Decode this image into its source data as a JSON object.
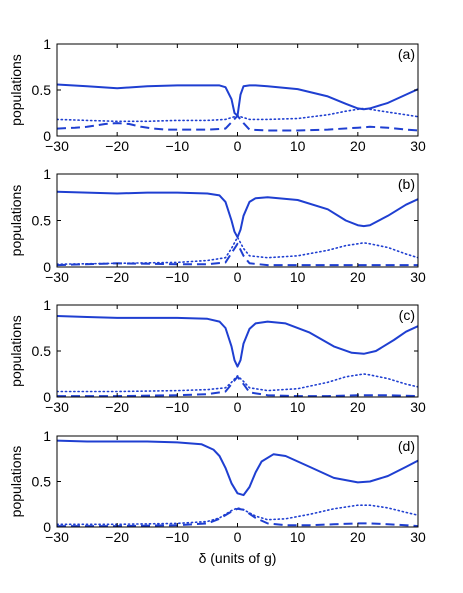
{
  "chart_data": [
    {
      "type": "line",
      "panel_label": "(a)",
      "xlim": [
        -30,
        30
      ],
      "ylim": [
        0,
        1
      ],
      "xticks": [
        -30,
        -20,
        -10,
        0,
        10,
        20,
        30
      ],
      "yticks": [
        0,
        0.5,
        1
      ],
      "xlabel": "",
      "ylabel": "populations",
      "series": [
        {
          "style": "solid",
          "color": "#1f3fd1",
          "x": [
            -30,
            -25,
            -20,
            -15,
            -10,
            -5,
            -3,
            -2,
            -1,
            -0.5,
            0,
            0.5,
            1,
            2,
            3,
            5,
            10,
            15,
            18,
            20,
            21,
            22,
            25,
            28,
            30
          ],
          "y": [
            0.56,
            0.54,
            0.52,
            0.54,
            0.55,
            0.55,
            0.55,
            0.53,
            0.4,
            0.25,
            0.22,
            0.45,
            0.54,
            0.55,
            0.55,
            0.54,
            0.51,
            0.43,
            0.35,
            0.3,
            0.29,
            0.3,
            0.36,
            0.45,
            0.51
          ]
        },
        {
          "style": "dotted",
          "color": "#1f3fd1",
          "x": [
            -30,
            -25,
            -20,
            -15,
            -10,
            -5,
            -2,
            -1,
            0,
            1,
            2,
            5,
            10,
            15,
            18,
            20,
            21,
            22,
            25,
            28,
            30
          ],
          "y": [
            0.18,
            0.17,
            0.16,
            0.16,
            0.17,
            0.17,
            0.18,
            0.2,
            0.22,
            0.2,
            0.18,
            0.18,
            0.19,
            0.23,
            0.27,
            0.29,
            0.3,
            0.29,
            0.26,
            0.23,
            0.21
          ]
        },
        {
          "style": "dashed",
          "color": "#1f3fd1",
          "x": [
            -30,
            -27,
            -25,
            -22,
            -20,
            -18,
            -16,
            -14,
            -12,
            -10,
            -5,
            -2,
            -1,
            0,
            1,
            2,
            5,
            10,
            15,
            20,
            22,
            25,
            28,
            30
          ],
          "y": [
            0.08,
            0.09,
            0.1,
            0.13,
            0.14,
            0.13,
            0.1,
            0.08,
            0.07,
            0.07,
            0.07,
            0.08,
            0.15,
            0.22,
            0.14,
            0.07,
            0.06,
            0.06,
            0.07,
            0.09,
            0.1,
            0.09,
            0.07,
            0.06
          ]
        }
      ]
    },
    {
      "type": "line",
      "panel_label": "(b)",
      "xlim": [
        -30,
        30
      ],
      "ylim": [
        0,
        1
      ],
      "xticks": [
        -30,
        -20,
        -10,
        0,
        10,
        20,
        30
      ],
      "yticks": [
        0,
        0.5,
        1
      ],
      "xlabel": "",
      "ylabel": "populations",
      "series": [
        {
          "style": "solid",
          "color": "#1f3fd1",
          "x": [
            -30,
            -25,
            -20,
            -15,
            -10,
            -5,
            -3,
            -2,
            -1,
            -0.5,
            0,
            0.5,
            1,
            2,
            3,
            5,
            10,
            15,
            18,
            20,
            21,
            22,
            25,
            28,
            30
          ],
          "y": [
            0.81,
            0.8,
            0.79,
            0.8,
            0.8,
            0.79,
            0.77,
            0.7,
            0.5,
            0.38,
            0.32,
            0.4,
            0.55,
            0.7,
            0.74,
            0.75,
            0.72,
            0.62,
            0.5,
            0.45,
            0.44,
            0.45,
            0.55,
            0.67,
            0.73
          ]
        },
        {
          "style": "dotted",
          "color": "#1f3fd1",
          "x": [
            -30,
            -20,
            -10,
            -5,
            -2,
            -1,
            0,
            1,
            2,
            5,
            10,
            15,
            18,
            20,
            21,
            22,
            25,
            28,
            30
          ],
          "y": [
            0.03,
            0.04,
            0.05,
            0.07,
            0.1,
            0.2,
            0.32,
            0.2,
            0.12,
            0.1,
            0.12,
            0.18,
            0.23,
            0.25,
            0.26,
            0.25,
            0.21,
            0.14,
            0.1
          ]
        },
        {
          "style": "dashed",
          "color": "#1f3fd1",
          "x": [
            -30,
            -20,
            -10,
            -5,
            -2,
            -1,
            0,
            1,
            2,
            5,
            10,
            15,
            20,
            25,
            30
          ],
          "y": [
            0.02,
            0.04,
            0.03,
            0.03,
            0.05,
            0.15,
            0.25,
            0.12,
            0.04,
            0.02,
            0.02,
            0.02,
            0.02,
            0.02,
            0.02
          ]
        }
      ]
    },
    {
      "type": "line",
      "panel_label": "(c)",
      "xlim": [
        -30,
        30
      ],
      "ylim": [
        0,
        1
      ],
      "xticks": [
        -30,
        -20,
        -10,
        0,
        10,
        20,
        30
      ],
      "yticks": [
        0,
        0.5,
        1
      ],
      "xlabel": "",
      "ylabel": "populations",
      "series": [
        {
          "style": "solid",
          "color": "#1f3fd1",
          "x": [
            -30,
            -25,
            -20,
            -15,
            -10,
            -5,
            -3,
            -2,
            -1,
            -0.5,
            0,
            0.5,
            1,
            2,
            3,
            5,
            8,
            12,
            16,
            19,
            21,
            23,
            26,
            28,
            30
          ],
          "y": [
            0.88,
            0.87,
            0.86,
            0.86,
            0.86,
            0.85,
            0.82,
            0.75,
            0.55,
            0.4,
            0.33,
            0.4,
            0.58,
            0.74,
            0.8,
            0.82,
            0.8,
            0.7,
            0.55,
            0.48,
            0.47,
            0.5,
            0.62,
            0.71,
            0.77
          ]
        },
        {
          "style": "dotted",
          "color": "#1f3fd1",
          "x": [
            -30,
            -20,
            -10,
            -5,
            -2,
            -1,
            0,
            1,
            2,
            5,
            10,
            15,
            18,
            20,
            21,
            22,
            25,
            28,
            30
          ],
          "y": [
            0.06,
            0.06,
            0.07,
            0.08,
            0.1,
            0.16,
            0.23,
            0.17,
            0.1,
            0.07,
            0.09,
            0.16,
            0.22,
            0.24,
            0.25,
            0.24,
            0.2,
            0.14,
            0.11
          ]
        },
        {
          "style": "dashed",
          "color": "#1f3fd1",
          "x": [
            -30,
            -20,
            -10,
            -5,
            -2,
            -1,
            0,
            1,
            2,
            5,
            10,
            15,
            20,
            25,
            30
          ],
          "y": [
            0.01,
            0.01,
            0.02,
            0.03,
            0.06,
            0.14,
            0.22,
            0.14,
            0.05,
            0.02,
            0.01,
            0.01,
            0.02,
            0.02,
            0.01
          ]
        }
      ]
    },
    {
      "type": "line",
      "panel_label": "(d)",
      "xlim": [
        -30,
        30
      ],
      "ylim": [
        0,
        1
      ],
      "xticks": [
        -30,
        -20,
        -10,
        0,
        10,
        20,
        30
      ],
      "yticks": [
        0,
        0.5,
        1
      ],
      "xlabel": "δ (units of g)",
      "ylabel": "populations",
      "series": [
        {
          "style": "solid",
          "color": "#1f3fd1",
          "x": [
            -30,
            -25,
            -20,
            -15,
            -10,
            -6,
            -4,
            -3,
            -2,
            -1,
            0,
            1,
            2,
            3,
            4,
            6,
            8,
            12,
            16,
            20,
            22,
            25,
            28,
            30
          ],
          "y": [
            0.95,
            0.94,
            0.94,
            0.94,
            0.93,
            0.91,
            0.85,
            0.78,
            0.65,
            0.48,
            0.37,
            0.35,
            0.44,
            0.6,
            0.72,
            0.8,
            0.78,
            0.66,
            0.54,
            0.49,
            0.5,
            0.56,
            0.66,
            0.73
          ]
        },
        {
          "style": "dotted",
          "color": "#1f3fd1",
          "x": [
            -30,
            -20,
            -10,
            -5,
            -3,
            -1,
            0,
            1,
            3,
            5,
            8,
            12,
            16,
            20,
            22,
            25,
            28,
            30
          ],
          "y": [
            0.03,
            0.03,
            0.04,
            0.06,
            0.1,
            0.18,
            0.21,
            0.19,
            0.12,
            0.08,
            0.09,
            0.14,
            0.2,
            0.24,
            0.24,
            0.21,
            0.16,
            0.13
          ]
        },
        {
          "style": "dashed",
          "color": "#1f3fd1",
          "x": [
            -30,
            -20,
            -10,
            -5,
            -3,
            -1,
            0,
            1,
            3,
            5,
            8,
            12,
            16,
            20,
            22,
            25,
            28,
            30
          ],
          "y": [
            0.01,
            0.01,
            0.02,
            0.04,
            0.09,
            0.17,
            0.2,
            0.19,
            0.1,
            0.04,
            0.02,
            0.02,
            0.03,
            0.04,
            0.04,
            0.03,
            0.02,
            0.01
          ]
        }
      ]
    }
  ]
}
